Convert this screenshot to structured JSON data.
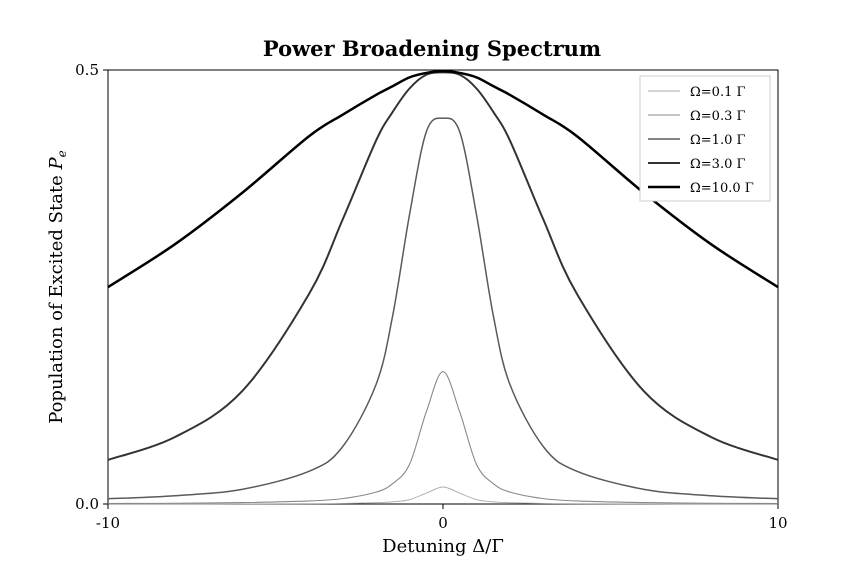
{
  "chart_data": {
    "type": "line",
    "title": "Power Broadening Spectrum",
    "xlabel": "Detuning Δ/Γ",
    "ylabel": "Population of Excited State P_e",
    "xlim": [
      -10,
      10
    ],
    "ylim": [
      0,
      0.5
    ],
    "x_ticks": [
      "-10",
      "0",
      "10"
    ],
    "y_ticks": [
      "0.0",
      "0.5"
    ],
    "grid": false,
    "legend_position": "top-right",
    "x": [
      -10,
      -8,
      -6,
      -4,
      -3,
      -2,
      -1.5,
      -1,
      -0.5,
      0,
      0.5,
      1,
      1.5,
      2,
      3,
      4,
      6,
      8,
      10
    ],
    "series": [
      {
        "name": "Ω=0.1 Γ",
        "values": [
          6e-05,
          0.0001,
          0.00017,
          0.0004,
          0.00069,
          0.0015,
          0.0025,
          0.005,
          0.0125,
          0.0196,
          0.0125,
          0.005,
          0.0025,
          0.0015,
          0.00069,
          0.0004,
          0.00017,
          0.0001,
          6e-05
        ]
      },
      {
        "name": "Ω=0.3 Γ",
        "values": [
          0.00056,
          0.00088,
          0.0016,
          0.0035,
          0.0062,
          0.0137,
          0.0235,
          0.0456,
          0.1059,
          0.1525,
          0.1059,
          0.0456,
          0.0235,
          0.0137,
          0.0062,
          0.0035,
          0.0016,
          0.00088,
          0.00056
        ]
      },
      {
        "name": "Ω=1.0 Γ",
        "values": [
          0.006,
          0.0095,
          0.0169,
          0.0377,
          0.0658,
          0.1375,
          0.2174,
          0.3333,
          0.4286,
          0.4444,
          0.4286,
          0.3333,
          0.2174,
          0.1375,
          0.0658,
          0.0377,
          0.0169,
          0.0095,
          0.006
        ]
      },
      {
        "name": "Ω=3.0 Γ",
        "values": [
          0.0508,
          0.0772,
          0.1298,
          0.2419,
          0.3273,
          0.4186,
          0.4518,
          0.4787,
          0.4945,
          0.4972,
          0.4945,
          0.4787,
          0.4518,
          0.4186,
          0.3273,
          0.2419,
          0.1298,
          0.0772,
          0.0508
        ]
      },
      {
        "name": "Ω=10.0 Γ",
        "values": [
          0.2499,
          0.2993,
          0.3583,
          0.4237,
          0.4484,
          0.4713,
          0.4814,
          0.4915,
          0.4966,
          0.4987,
          0.4966,
          0.4915,
          0.4814,
          0.4713,
          0.4484,
          0.4237,
          0.3583,
          0.2993,
          0.2499
        ]
      }
    ],
    "colors": [
      "#aaaaaa",
      "#888888",
      "#5a5a5a",
      "#333333",
      "#000000"
    ]
  }
}
